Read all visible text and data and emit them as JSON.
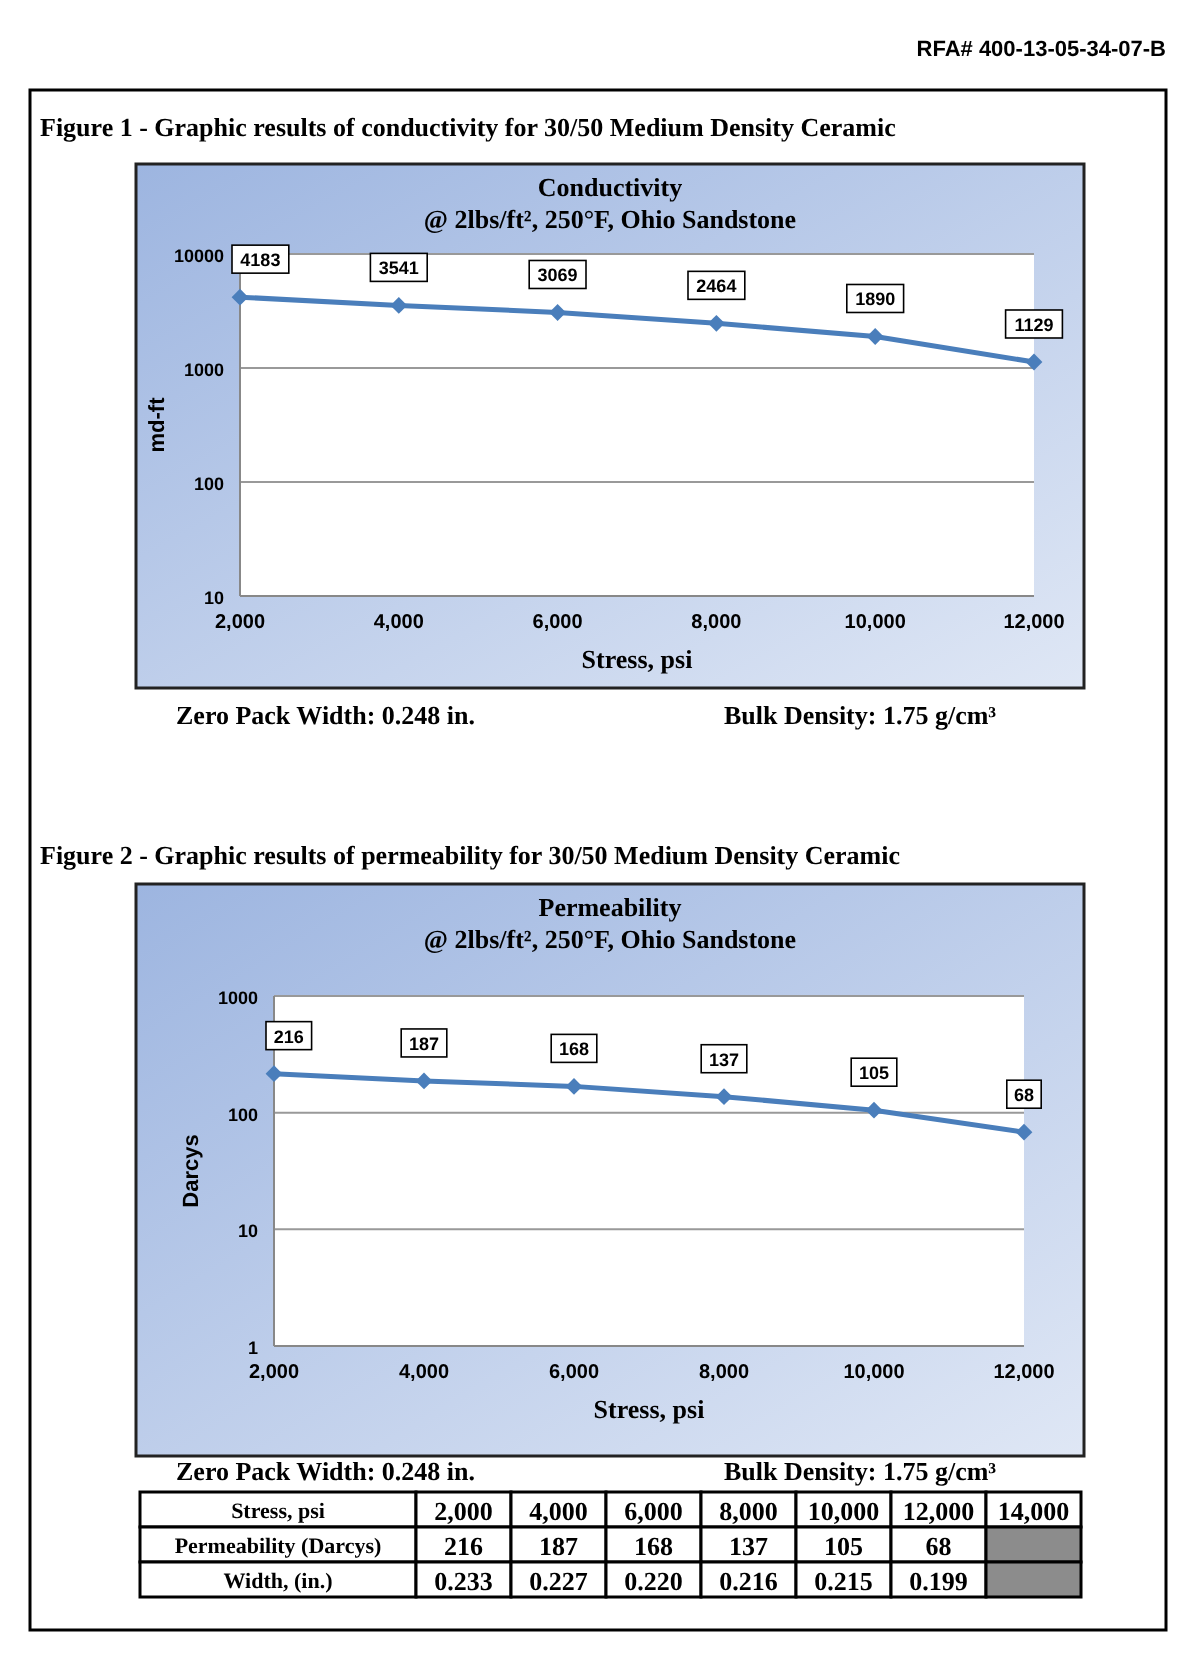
{
  "chart_data": [
    {
      "type": "line",
      "title": "Conductivity",
      "subtitle": "@ 2lbs/ft², 250°F, Ohio Sandstone",
      "xlabel": "Stress, psi",
      "ylabel": "md-ft",
      "x": [
        2000,
        4000,
        6000,
        8000,
        10000,
        12000
      ],
      "series": [
        {
          "color": "#4a7ebb",
          "values": [
            4183,
            3541,
            3069,
            2464,
            1890,
            1129
          ]
        }
      ],
      "xlim": [
        2000,
        12000
      ],
      "xticks": [
        {
          "value": 2000,
          "label": "2,000"
        },
        {
          "value": 4000,
          "label": "4,000"
        },
        {
          "value": 6000,
          "label": "6,000"
        },
        {
          "value": 8000,
          "label": "8,000"
        },
        {
          "value": 10000,
          "label": "10,000"
        },
        {
          "value": 12000,
          "label": "12,000"
        }
      ],
      "ylim": [
        10,
        10000
      ],
      "yticks": [
        10,
        100,
        1000,
        10000
      ],
      "log": true,
      "grid": "y",
      "marker": "diamond",
      "line_style": "solid",
      "data_labels": true,
      "annotations": [
        "RFA# 400-13-05-34-07-B",
        "Figure 1 - Graphic results of conductivity for 30/50 Medium Density Ceramic",
        "Zero Pack Width:  0.248  in.",
        "Bulk Density:  1.75  g/cm³"
      ]
    },
    {
      "type": "line",
      "title": "Permeability",
      "subtitle": "@ 2lbs/ft², 250°F, Ohio Sandstone",
      "xlabel": "Stress, psi",
      "ylabel": "Darcys",
      "x": [
        2000,
        4000,
        6000,
        8000,
        10000,
        12000
      ],
      "series": [
        {
          "color": "#4a7ebb",
          "values": [
            216,
            187,
            168,
            137,
            105,
            68
          ]
        }
      ],
      "xlim": [
        2000,
        12000
      ],
      "xticks": [
        {
          "value": 2000,
          "label": "2,000"
        },
        {
          "value": 4000,
          "label": "4,000"
        },
        {
          "value": 6000,
          "label": "6,000"
        },
        {
          "value": 8000,
          "label": "8,000"
        },
        {
          "value": 10000,
          "label": "10,000"
        },
        {
          "value": 12000,
          "label": "12,000"
        }
      ],
      "ylim": [
        1,
        1000
      ],
      "yticks": [
        1,
        10,
        100,
        1000
      ],
      "log": true,
      "grid": "y",
      "marker": "diamond",
      "line_style": "solid",
      "data_labels": true,
      "annotations": [
        null,
        "Figure 2 - Graphic results of permeability for 30/50 Medium Density Ceramic",
        "Zero Pack Width:  0.248  in.",
        "Bulk Density:  1.75  g/cm³",
        "Stress, psi",
        "14,000",
        "Permeability (Darcys)",
        "Width, (in.)",
        "0.233",
        "0.227",
        "0.220",
        "0.216",
        "0.215",
        "0.199",
        "216",
        "187",
        "168",
        "137",
        "105",
        "68"
      ]
    }
  ]
}
